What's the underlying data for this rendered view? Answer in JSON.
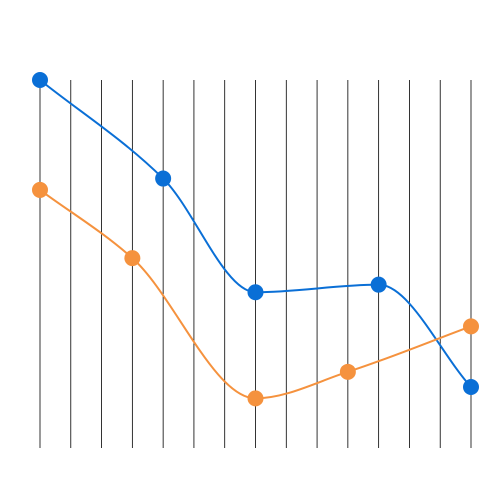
{
  "chart_data": {
    "type": "line",
    "smooth": true,
    "grid": false,
    "legend": "none",
    "title": "",
    "xlabel": "",
    "ylabel": "",
    "vertical_drop_lines": true,
    "x": [
      0,
      1,
      2,
      3,
      4,
      5,
      6,
      7,
      8,
      9,
      10,
      11,
      12,
      13,
      14
    ],
    "xlim": [
      0,
      14
    ],
    "ylim": [
      0,
      100
    ],
    "series": [
      {
        "color": "#0a6fd6",
        "marker_color": "#0a6fd6",
        "points": [
          [
            0,
            100
          ],
          [
            4,
            74
          ],
          [
            7,
            44
          ],
          [
            11,
            46
          ],
          [
            14,
            19
          ]
        ]
      },
      {
        "color": "#f5923e",
        "marker_color": "#f5923e",
        "points": [
          [
            0,
            71
          ],
          [
            3,
            53
          ],
          [
            7,
            16
          ],
          [
            10,
            23
          ],
          [
            14,
            35
          ]
        ]
      }
    ]
  }
}
